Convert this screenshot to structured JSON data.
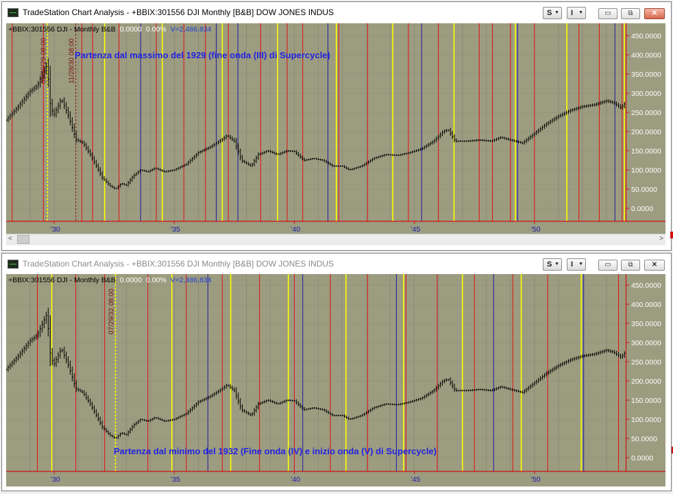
{
  "windows": [
    {
      "title": "TradeStation Chart Analysis - +BBIX:301556 DJI Monthly [B&B] DOW JONES INDUS",
      "buttons": {
        "s_label": "S",
        "i_label": "I",
        "minimize": "▭",
        "restore": "⧉",
        "close": "✕"
      },
      "header": {
        "symbol": "+BBIX:301556 DJI - Monthly  B&B",
        "value": "0.0000",
        "percent": "0.00%",
        "volume": "V=2,486,834"
      },
      "annotation": "Partenza dal massimo del 1929 (fine onda (III) di Supercycle)",
      "markers": [
        "09/30/29 08:00",
        "11/28/30 08:00"
      ],
      "scroll": {
        "left": "<",
        "right": ">"
      }
    },
    {
      "title": "TradeStation Chart Analysis - +BBIX:301556 DJI Monthly [B&B] DOW JONES INDUS",
      "buttons": {
        "s_label": "S",
        "i_label": "I",
        "minimize": "▭",
        "restore": "⧉",
        "close": "✕"
      },
      "header": {
        "symbol": "+BBIX:301556 DJI - Monthly  B&B",
        "value": "0.0000",
        "percent": "0.00%",
        "volume": "V=2,486,834"
      },
      "annotation": "Partenza dal minimo del 1932 (Fine onda (IV) e inizio onda (V) di Supercycle)",
      "markers": [
        "07/29/32 08:00"
      ]
    }
  ],
  "chart_data": {
    "type": "line",
    "title": "+BBIX:301556 DJI - Monthly",
    "x_tick_labels": [
      "'30",
      "'35",
      "'40",
      "'45",
      "'50"
    ],
    "y_tick_labels": [
      "450.0000",
      "400.0000",
      "350.0000",
      "300.0000",
      "250.0000",
      "200.0000",
      "150.0000",
      "100.0000",
      "50.0000",
      "0.0000"
    ],
    "ylim": [
      -20,
      460
    ],
    "xlim": [
      1928.0,
      1953.8
    ],
    "series": [
      {
        "values_note": "monthly close, approx",
        "x": [
          1928.0,
          1928.5,
          1929.0,
          1929.3,
          1929.7,
          1929.85,
          1930.0,
          1930.3,
          1930.6,
          1930.9,
          1931.2,
          1931.5,
          1931.8,
          1932.0,
          1932.3,
          1932.55,
          1932.8,
          1933.0,
          1933.3,
          1933.6,
          1933.9,
          1934.2,
          1934.6,
          1935.0,
          1935.5,
          1936.0,
          1936.5,
          1937.0,
          1937.2,
          1937.5,
          1937.8,
          1938.2,
          1938.5,
          1938.9,
          1939.3,
          1939.7,
          1940.0,
          1940.4,
          1940.8,
          1941.2,
          1941.6,
          1942.0,
          1942.3,
          1942.8,
          1943.3,
          1943.8,
          1944.3,
          1944.8,
          1945.3,
          1945.8,
          1946.2,
          1946.4,
          1946.7,
          1947.2,
          1947.7,
          1948.2,
          1948.6,
          1949.0,
          1949.5,
          1950.0,
          1950.5,
          1951.0,
          1951.5,
          1952.0,
          1952.5,
          1953.0,
          1953.3,
          1953.6,
          1953.8
        ],
        "y": [
          230,
          265,
          305,
          320,
          375,
          260,
          245,
          285,
          240,
          180,
          170,
          140,
          105,
          80,
          60,
          50,
          65,
          60,
          85,
          100,
          95,
          105,
          95,
          100,
          115,
          145,
          160,
          180,
          190,
          175,
          125,
          110,
          140,
          150,
          140,
          150,
          148,
          125,
          130,
          125,
          110,
          110,
          100,
          110,
          130,
          140,
          138,
          145,
          155,
          175,
          200,
          205,
          175,
          175,
          178,
          175,
          185,
          178,
          170,
          195,
          220,
          240,
          255,
          265,
          270,
          280,
          275,
          262,
          275
        ]
      }
    ],
    "vertical_lines_panel1": [
      {
        "x": 1929.72,
        "color": "yellow",
        "dashed": true
      },
      {
        "x": 1930.9,
        "color": "darkred",
        "dashed": true
      },
      {
        "x": 1928.25,
        "color": "red"
      },
      {
        "x": 1929.55,
        "color": "red"
      },
      {
        "x": 1931.15,
        "color": "red"
      },
      {
        "x": 1931.6,
        "color": "red"
      },
      {
        "x": 1932.1,
        "color": "yellow"
      },
      {
        "x": 1932.7,
        "color": "red"
      },
      {
        "x": 1933.6,
        "color": "blue"
      },
      {
        "x": 1934.25,
        "color": "red"
      },
      {
        "x": 1934.5,
        "color": "yellow"
      },
      {
        "x": 1935.4,
        "color": "red"
      },
      {
        "x": 1936.3,
        "color": "red"
      },
      {
        "x": 1936.75,
        "color": "blue"
      },
      {
        "x": 1937.0,
        "color": "yellow"
      },
      {
        "x": 1937.25,
        "color": "red"
      },
      {
        "x": 1937.65,
        "color": "blue"
      },
      {
        "x": 1938.6,
        "color": "red"
      },
      {
        "x": 1939.3,
        "color": "yellow"
      },
      {
        "x": 1939.7,
        "color": "red"
      },
      {
        "x": 1940.35,
        "color": "red"
      },
      {
        "x": 1941.4,
        "color": "blue"
      },
      {
        "x": 1941.75,
        "color": "yellow"
      },
      {
        "x": 1941.85,
        "color": "red"
      },
      {
        "x": 1943.05,
        "color": "red"
      },
      {
        "x": 1944.1,
        "color": "yellow"
      },
      {
        "x": 1944.75,
        "color": "red"
      },
      {
        "x": 1945.3,
        "color": "blue"
      },
      {
        "x": 1946.0,
        "color": "red"
      },
      {
        "x": 1946.65,
        "color": "yellow"
      },
      {
        "x": 1947.7,
        "color": "red"
      },
      {
        "x": 1948.25,
        "color": "red"
      },
      {
        "x": 1949.0,
        "color": "red"
      },
      {
        "x": 1949.2,
        "color": "yellow"
      },
      {
        "x": 1949.3,
        "color": "blue"
      },
      {
        "x": 1950.0,
        "color": "red"
      },
      {
        "x": 1951.35,
        "color": "yellow"
      },
      {
        "x": 1951.85,
        "color": "red"
      },
      {
        "x": 1952.7,
        "color": "red"
      },
      {
        "x": 1953.35,
        "color": "blue"
      },
      {
        "x": 1953.65,
        "color": "red"
      },
      {
        "x": 1953.75,
        "color": "yellow"
      }
    ],
    "vertical_lines_panel2": [
      {
        "x": 1932.55,
        "color": "yellow",
        "dashed": true
      },
      {
        "x": 1929.3,
        "color": "red"
      },
      {
        "x": 1929.9,
        "color": "yellow"
      },
      {
        "x": 1930.9,
        "color": "red"
      },
      {
        "x": 1932.1,
        "color": "red"
      },
      {
        "x": 1933.9,
        "color": "red"
      },
      {
        "x": 1934.9,
        "color": "yellow"
      },
      {
        "x": 1935.5,
        "color": "red"
      },
      {
        "x": 1936.4,
        "color": "blue"
      },
      {
        "x": 1937.0,
        "color": "red"
      },
      {
        "x": 1937.35,
        "color": "yellow"
      },
      {
        "x": 1938.55,
        "color": "red"
      },
      {
        "x": 1939.75,
        "color": "yellow"
      },
      {
        "x": 1940.0,
        "color": "red"
      },
      {
        "x": 1940.35,
        "color": "blue"
      },
      {
        "x": 1941.5,
        "color": "red"
      },
      {
        "x": 1942.15,
        "color": "yellow"
      },
      {
        "x": 1943.05,
        "color": "red"
      },
      {
        "x": 1944.25,
        "color": "blue"
      },
      {
        "x": 1944.55,
        "color": "yellow"
      },
      {
        "x": 1944.65,
        "color": "red"
      },
      {
        "x": 1945.95,
        "color": "red"
      },
      {
        "x": 1947.0,
        "color": "yellow"
      },
      {
        "x": 1947.5,
        "color": "red"
      },
      {
        "x": 1948.3,
        "color": "blue"
      },
      {
        "x": 1949.1,
        "color": "red"
      },
      {
        "x": 1949.45,
        "color": "yellow"
      },
      {
        "x": 1950.55,
        "color": "red"
      },
      {
        "x": 1951.95,
        "color": "yellow"
      },
      {
        "x": 1952.05,
        "color": "blue"
      },
      {
        "x": 1953.5,
        "color": "red"
      }
    ],
    "colors": {
      "background": "#9c9c80",
      "price": "#000000",
      "grid": "#6e6e6e",
      "axis": "#d01010",
      "labels": "#ffffff",
      "annotation": "#2323e0"
    }
  }
}
